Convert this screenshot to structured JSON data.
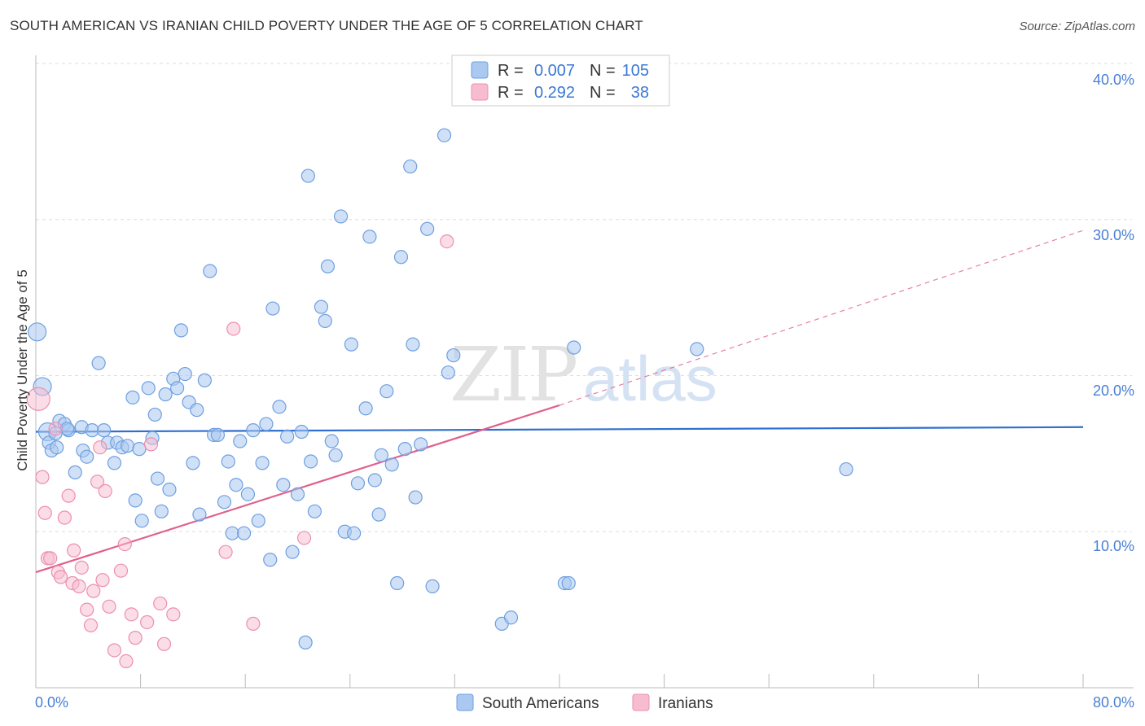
{
  "header": {
    "title": "SOUTH AMERICAN VS IRANIAN CHILD POVERTY UNDER THE AGE OF 5 CORRELATION CHART",
    "source": "Source: ZipAtlas.com"
  },
  "watermark": "ZIPatlas",
  "legend_stats": [
    {
      "r_label": "R =",
      "r_value": "0.007",
      "n_label": "N =",
      "n_value": "105"
    },
    {
      "r_label": "R =",
      "r_value": "0.292",
      "n_label": "N =",
      "n_value": "38"
    }
  ],
  "colors": {
    "south_americans_fill": "#aac8f0",
    "south_americans_stroke": "#6e9fe0",
    "south_americans_line": "#2f6fd0",
    "iranians_fill": "#f7bcd0",
    "iranians_stroke": "#ec8fae",
    "iranians_line": "#e0608e",
    "accent_text": "#3a78d4",
    "grid": "#dddddd"
  },
  "chart_data": {
    "type": "scatter",
    "title": "SOUTH AMERICAN VS IRANIAN CHILD POVERTY UNDER THE AGE OF 5 CORRELATION CHART",
    "xlabel": "",
    "ylabel": "Child Poverty Under the Age of 5",
    "xlim": [
      0,
      80
    ],
    "ylim": [
      0,
      40
    ],
    "x_tick_labels": [
      "0.0%",
      "80.0%"
    ],
    "y_ticks": [
      10,
      20,
      30,
      40
    ],
    "y_tick_labels": [
      "10.0%",
      "20.0%",
      "30.0%",
      "40.0%"
    ],
    "series": [
      {
        "name": "South Americans",
        "r": 0.007,
        "n": 105,
        "trend": {
          "x": [
            0,
            80
          ],
          "y": [
            16.4,
            16.7
          ],
          "style": "solid"
        },
        "points": [
          [
            0.1,
            22.8
          ],
          [
            0.5,
            19.3
          ],
          [
            0.9,
            16.4
          ],
          [
            1.0,
            15.7
          ],
          [
            1.5,
            16.3
          ],
          [
            1.2,
            15.2
          ],
          [
            1.8,
            17.1
          ],
          [
            2.2,
            16.9
          ],
          [
            2.5,
            16.5
          ],
          [
            3.0,
            13.8
          ],
          [
            3.5,
            16.7
          ],
          [
            3.6,
            15.2
          ],
          [
            3.9,
            14.8
          ],
          [
            4.3,
            16.5
          ],
          [
            4.8,
            20.8
          ],
          [
            5.2,
            16.5
          ],
          [
            5.5,
            15.7
          ],
          [
            6.0,
            14.4
          ],
          [
            6.2,
            15.7
          ],
          [
            6.6,
            15.4
          ],
          [
            7.0,
            15.5
          ],
          [
            7.4,
            18.6
          ],
          [
            7.6,
            12.0
          ],
          [
            7.9,
            15.3
          ],
          [
            8.1,
            10.7
          ],
          [
            8.6,
            19.2
          ],
          [
            8.9,
            16.0
          ],
          [
            9.1,
            17.5
          ],
          [
            9.3,
            13.4
          ],
          [
            9.6,
            11.3
          ],
          [
            9.9,
            18.8
          ],
          [
            10.2,
            12.7
          ],
          [
            10.5,
            19.8
          ],
          [
            10.8,
            19.2
          ],
          [
            11.1,
            22.9
          ],
          [
            11.4,
            20.1
          ],
          [
            11.7,
            18.3
          ],
          [
            12.0,
            14.4
          ],
          [
            12.3,
            17.8
          ],
          [
            12.5,
            11.1
          ],
          [
            12.9,
            19.7
          ],
          [
            13.3,
            26.7
          ],
          [
            13.6,
            16.2
          ],
          [
            13.9,
            16.2
          ],
          [
            14.4,
            11.9
          ],
          [
            14.7,
            14.5
          ],
          [
            15.0,
            9.9
          ],
          [
            15.3,
            13.0
          ],
          [
            15.6,
            15.8
          ],
          [
            15.9,
            9.9
          ],
          [
            16.2,
            12.4
          ],
          [
            16.6,
            16.5
          ],
          [
            17.0,
            10.7
          ],
          [
            17.3,
            14.4
          ],
          [
            17.6,
            16.9
          ],
          [
            17.9,
            8.2
          ],
          [
            18.1,
            24.3
          ],
          [
            18.6,
            18.0
          ],
          [
            18.9,
            13.0
          ],
          [
            19.2,
            16.1
          ],
          [
            19.6,
            8.7
          ],
          [
            20.0,
            12.4
          ],
          [
            20.3,
            16.4
          ],
          [
            20.6,
            2.9
          ],
          [
            20.8,
            32.8
          ],
          [
            21.0,
            14.5
          ],
          [
            21.3,
            11.3
          ],
          [
            21.8,
            24.4
          ],
          [
            22.1,
            23.5
          ],
          [
            22.3,
            27.0
          ],
          [
            22.6,
            15.8
          ],
          [
            22.9,
            14.9
          ],
          [
            23.3,
            30.2
          ],
          [
            23.6,
            10.0
          ],
          [
            24.1,
            22.0
          ],
          [
            24.3,
            9.9
          ],
          [
            24.6,
            13.1
          ],
          [
            25.2,
            17.9
          ],
          [
            25.5,
            28.9
          ],
          [
            25.9,
            13.3
          ],
          [
            26.2,
            11.1
          ],
          [
            26.4,
            14.9
          ],
          [
            26.8,
            19.0
          ],
          [
            27.2,
            14.3
          ],
          [
            27.6,
            6.7
          ],
          [
            27.9,
            27.6
          ],
          [
            28.2,
            15.3
          ],
          [
            28.6,
            33.4
          ],
          [
            28.8,
            22.0
          ],
          [
            29.0,
            12.2
          ],
          [
            29.4,
            15.6
          ],
          [
            29.9,
            29.4
          ],
          [
            30.3,
            6.5
          ],
          [
            31.2,
            35.4
          ],
          [
            31.5,
            20.2
          ],
          [
            31.9,
            21.3
          ],
          [
            35.6,
            4.1
          ],
          [
            36.3,
            4.5
          ],
          [
            40.4,
            6.7
          ],
          [
            40.7,
            6.7
          ],
          [
            41.1,
            21.8
          ],
          [
            50.5,
            21.7
          ],
          [
            61.9,
            14.0
          ],
          [
            1.6,
            15.4
          ],
          [
            2.4,
            16.6
          ]
        ]
      },
      {
        "name": "Iranians",
        "r": 0.292,
        "n": 38,
        "trend": {
          "x": [
            0,
            40,
            80
          ],
          "y": [
            7.4,
            18.1,
            29.3
          ],
          "style": "solid-then-dashed"
        },
        "points": [
          [
            0.2,
            18.5
          ],
          [
            0.5,
            13.5
          ],
          [
            0.7,
            11.2
          ],
          [
            0.9,
            8.3
          ],
          [
            1.1,
            8.3
          ],
          [
            1.5,
            16.6
          ],
          [
            1.7,
            7.4
          ],
          [
            1.9,
            7.1
          ],
          [
            2.2,
            10.9
          ],
          [
            2.5,
            12.3
          ],
          [
            2.8,
            6.7
          ],
          [
            2.9,
            8.8
          ],
          [
            3.3,
            6.5
          ],
          [
            3.5,
            7.7
          ],
          [
            3.9,
            5.0
          ],
          [
            4.2,
            4.0
          ],
          [
            4.4,
            6.2
          ],
          [
            4.7,
            13.2
          ],
          [
            4.9,
            15.4
          ],
          [
            5.1,
            6.9
          ],
          [
            5.3,
            12.6
          ],
          [
            5.6,
            5.2
          ],
          [
            6.0,
            2.4
          ],
          [
            6.5,
            7.5
          ],
          [
            6.8,
            9.2
          ],
          [
            6.9,
            1.7
          ],
          [
            7.3,
            4.7
          ],
          [
            7.6,
            3.2
          ],
          [
            8.5,
            4.2
          ],
          [
            8.8,
            15.6
          ],
          [
            9.5,
            5.4
          ],
          [
            9.8,
            2.8
          ],
          [
            10.5,
            4.7
          ],
          [
            14.5,
            8.7
          ],
          [
            15.1,
            23.0
          ],
          [
            16.6,
            4.1
          ],
          [
            20.5,
            9.6
          ],
          [
            31.4,
            28.6
          ]
        ]
      }
    ]
  },
  "bottom_legend": [
    {
      "label": "South Americans"
    },
    {
      "label": "Iranians"
    }
  ]
}
